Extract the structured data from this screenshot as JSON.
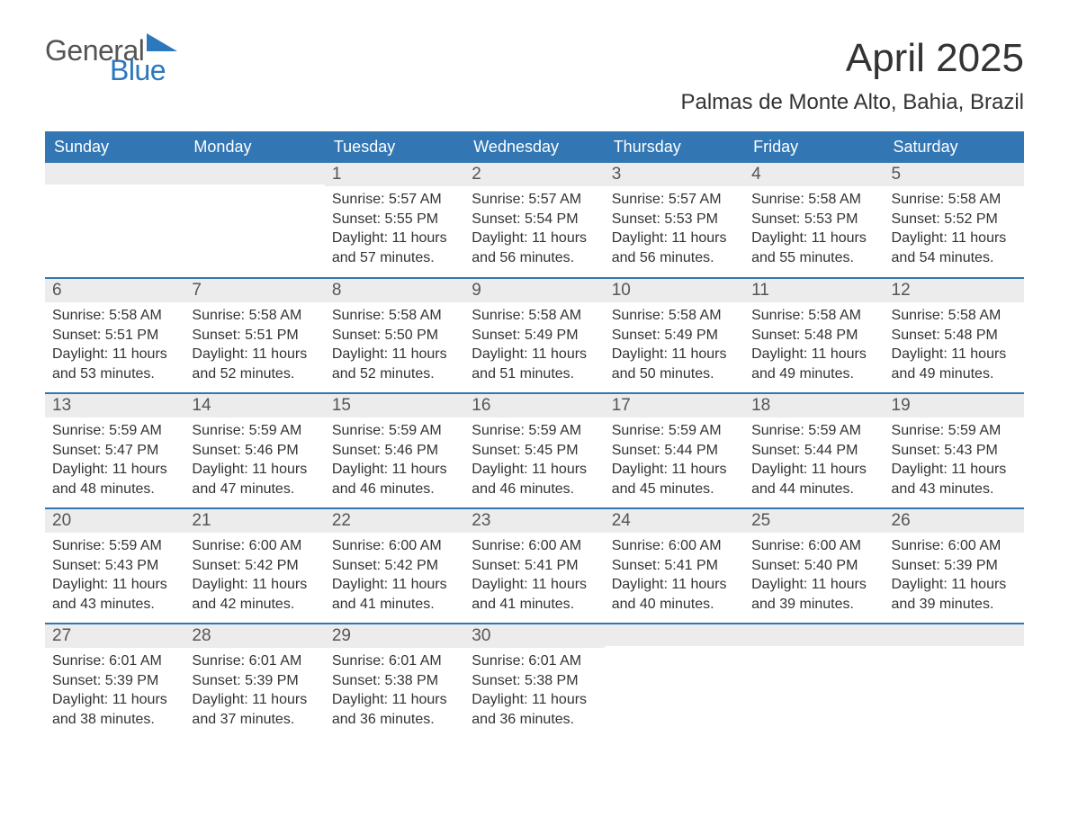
{
  "logo": {
    "text1": "General",
    "text2": "Blue",
    "shape_color": "#2b78bd",
    "text1_color": "#555555",
    "text2_color": "#2b78bd"
  },
  "title": "April 2025",
  "location": "Palmas de Monte Alto, Bahia, Brazil",
  "colors": {
    "header_bg": "#3277b3",
    "header_text": "#ffffff",
    "daynum_bg": "#ececec",
    "row_border": "#3277b3",
    "body_text": "#333333",
    "daynum_text": "#555555",
    "page_bg": "#ffffff"
  },
  "fonts": {
    "title_size": 44,
    "location_size": 24,
    "header_size": 18,
    "daynum_size": 19,
    "body_size": 16,
    "family": "Arial"
  },
  "columns": [
    "Sunday",
    "Monday",
    "Tuesday",
    "Wednesday",
    "Thursday",
    "Friday",
    "Saturday"
  ],
  "weeks": [
    [
      null,
      null,
      {
        "d": "1",
        "sr": "5:57 AM",
        "ss": "5:55 PM",
        "dl": "11 hours and 57 minutes."
      },
      {
        "d": "2",
        "sr": "5:57 AM",
        "ss": "5:54 PM",
        "dl": "11 hours and 56 minutes."
      },
      {
        "d": "3",
        "sr": "5:57 AM",
        "ss": "5:53 PM",
        "dl": "11 hours and 56 minutes."
      },
      {
        "d": "4",
        "sr": "5:58 AM",
        "ss": "5:53 PM",
        "dl": "11 hours and 55 minutes."
      },
      {
        "d": "5",
        "sr": "5:58 AM",
        "ss": "5:52 PM",
        "dl": "11 hours and 54 minutes."
      }
    ],
    [
      {
        "d": "6",
        "sr": "5:58 AM",
        "ss": "5:51 PM",
        "dl": "11 hours and 53 minutes."
      },
      {
        "d": "7",
        "sr": "5:58 AM",
        "ss": "5:51 PM",
        "dl": "11 hours and 52 minutes."
      },
      {
        "d": "8",
        "sr": "5:58 AM",
        "ss": "5:50 PM",
        "dl": "11 hours and 52 minutes."
      },
      {
        "d": "9",
        "sr": "5:58 AM",
        "ss": "5:49 PM",
        "dl": "11 hours and 51 minutes."
      },
      {
        "d": "10",
        "sr": "5:58 AM",
        "ss": "5:49 PM",
        "dl": "11 hours and 50 minutes."
      },
      {
        "d": "11",
        "sr": "5:58 AM",
        "ss": "5:48 PM",
        "dl": "11 hours and 49 minutes."
      },
      {
        "d": "12",
        "sr": "5:58 AM",
        "ss": "5:48 PM",
        "dl": "11 hours and 49 minutes."
      }
    ],
    [
      {
        "d": "13",
        "sr": "5:59 AM",
        "ss": "5:47 PM",
        "dl": "11 hours and 48 minutes."
      },
      {
        "d": "14",
        "sr": "5:59 AM",
        "ss": "5:46 PM",
        "dl": "11 hours and 47 minutes."
      },
      {
        "d": "15",
        "sr": "5:59 AM",
        "ss": "5:46 PM",
        "dl": "11 hours and 46 minutes."
      },
      {
        "d": "16",
        "sr": "5:59 AM",
        "ss": "5:45 PM",
        "dl": "11 hours and 46 minutes."
      },
      {
        "d": "17",
        "sr": "5:59 AM",
        "ss": "5:44 PM",
        "dl": "11 hours and 45 minutes."
      },
      {
        "d": "18",
        "sr": "5:59 AM",
        "ss": "5:44 PM",
        "dl": "11 hours and 44 minutes."
      },
      {
        "d": "19",
        "sr": "5:59 AM",
        "ss": "5:43 PM",
        "dl": "11 hours and 43 minutes."
      }
    ],
    [
      {
        "d": "20",
        "sr": "5:59 AM",
        "ss": "5:43 PM",
        "dl": "11 hours and 43 minutes."
      },
      {
        "d": "21",
        "sr": "6:00 AM",
        "ss": "5:42 PM",
        "dl": "11 hours and 42 minutes."
      },
      {
        "d": "22",
        "sr": "6:00 AM",
        "ss": "5:42 PM",
        "dl": "11 hours and 41 minutes."
      },
      {
        "d": "23",
        "sr": "6:00 AM",
        "ss": "5:41 PM",
        "dl": "11 hours and 41 minutes."
      },
      {
        "d": "24",
        "sr": "6:00 AM",
        "ss": "5:41 PM",
        "dl": "11 hours and 40 minutes."
      },
      {
        "d": "25",
        "sr": "6:00 AM",
        "ss": "5:40 PM",
        "dl": "11 hours and 39 minutes."
      },
      {
        "d": "26",
        "sr": "6:00 AM",
        "ss": "5:39 PM",
        "dl": "11 hours and 39 minutes."
      }
    ],
    [
      {
        "d": "27",
        "sr": "6:01 AM",
        "ss": "5:39 PM",
        "dl": "11 hours and 38 minutes."
      },
      {
        "d": "28",
        "sr": "6:01 AM",
        "ss": "5:39 PM",
        "dl": "11 hours and 37 minutes."
      },
      {
        "d": "29",
        "sr": "6:01 AM",
        "ss": "5:38 PM",
        "dl": "11 hours and 36 minutes."
      },
      {
        "d": "30",
        "sr": "6:01 AM",
        "ss": "5:38 PM",
        "dl": "11 hours and 36 minutes."
      },
      null,
      null,
      null
    ]
  ],
  "labels": {
    "sunrise": "Sunrise: ",
    "sunset": "Sunset: ",
    "daylight": "Daylight: "
  }
}
